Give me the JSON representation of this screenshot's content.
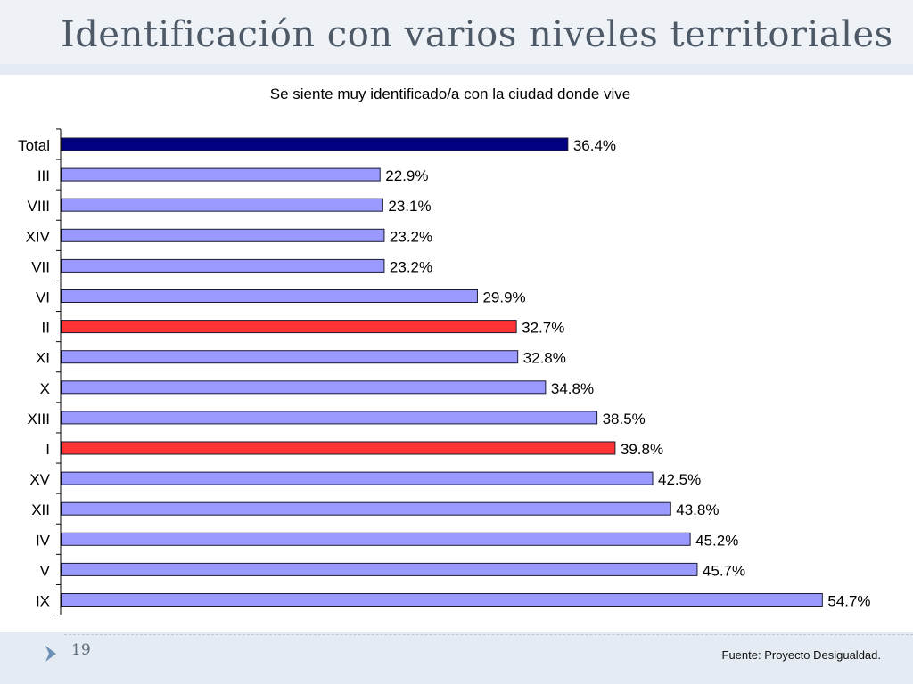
{
  "slide": {
    "title": "Identificación con varios niveles territoriales",
    "page_number": "19",
    "source": "Fuente: Proyecto Desigualdad."
  },
  "colors": {
    "total_bar": "#000080",
    "default_bar": "#9999ff",
    "highlight_bar": "#ff3333",
    "bar_border": "#1a1a33"
  },
  "chart_data": {
    "type": "bar",
    "orientation": "horizontal",
    "title": "Se siente muy identificado/a con la ciudad donde vive",
    "categories": [
      "Total",
      "III",
      "VIII",
      "XIV",
      "VII",
      "VI",
      "II",
      "XI",
      "X",
      "XIII",
      "I",
      "XV",
      "XII",
      "IV",
      "V",
      "IX"
    ],
    "values": [
      36.4,
      22.9,
      23.1,
      23.2,
      23.2,
      29.9,
      32.7,
      32.8,
      34.8,
      38.5,
      39.8,
      42.5,
      43.8,
      45.2,
      45.7,
      54.7
    ],
    "value_labels": [
      "36.4%",
      "22.9%",
      "23.1%",
      "23.2%",
      "23.2%",
      "29.9%",
      "32.7%",
      "32.8%",
      "34.8%",
      "38.5%",
      "39.8%",
      "42.5%",
      "43.8%",
      "45.2%",
      "45.7%",
      "54.7%"
    ],
    "highlight": [
      "Total",
      "II",
      "I"
    ],
    "xlim": [
      0,
      55
    ],
    "grid": false,
    "legend": "none"
  }
}
